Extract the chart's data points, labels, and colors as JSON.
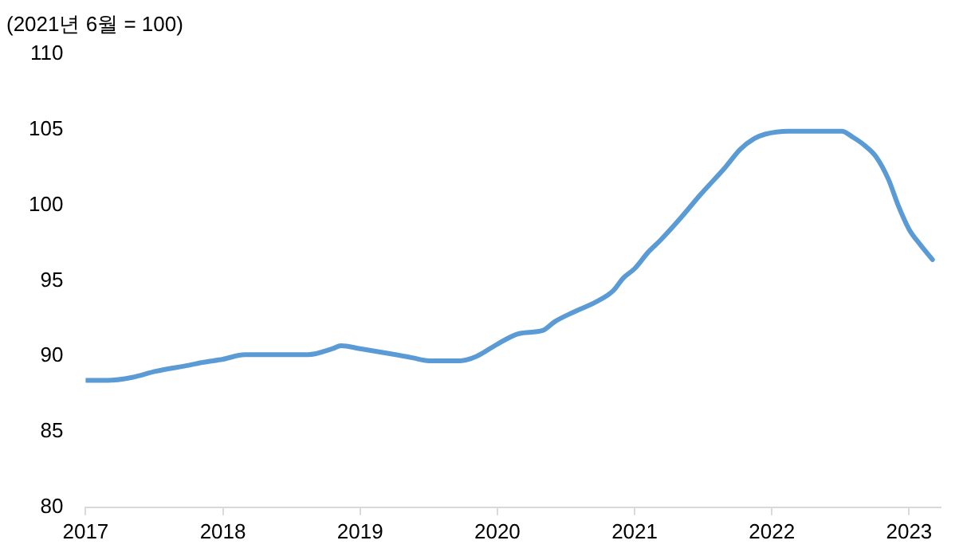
{
  "chart_data": {
    "type": "line",
    "ylabel": "(2021년 6월 = 100)",
    "x": [
      2017.0,
      2017.16,
      2017.34,
      2017.51,
      2017.75,
      2017.86,
      2018.0,
      2018.16,
      2018.62,
      2018.8,
      2018.86,
      2019.0,
      2019.26,
      2019.38,
      2019.5,
      2019.73,
      2019.85,
      2020.0,
      2020.16,
      2020.33,
      2020.42,
      2020.55,
      2020.72,
      2020.84,
      2020.92,
      2021.0,
      2021.1,
      2021.19,
      2021.34,
      2021.48,
      2021.66,
      2021.77,
      2021.87,
      2021.95,
      2022.12,
      2022.51,
      2022.59,
      2022.67,
      2022.76,
      2022.85,
      2022.92,
      2023.0,
      2023.08,
      2023.17
    ],
    "series": [
      {
        "color": "#5b9bd5",
        "values": [
          88.4,
          88.4,
          88.6,
          89.0,
          89.4,
          89.6,
          89.8,
          90.1,
          90.1,
          90.5,
          90.7,
          90.5,
          90.1,
          89.9,
          89.7,
          89.7,
          90.0,
          90.8,
          91.5,
          91.7,
          92.3,
          92.9,
          93.6,
          94.3,
          95.2,
          95.8,
          96.9,
          97.7,
          99.2,
          100.7,
          102.5,
          103.7,
          104.4,
          104.7,
          104.9,
          104.9,
          104.5,
          104.0,
          103.2,
          101.7,
          100.0,
          98.4,
          97.4,
          96.4
        ]
      }
    ],
    "xlim": [
      2017,
      2023.23
    ],
    "xticks": [
      2017,
      2018,
      2019,
      2020,
      2021,
      2022,
      2023
    ],
    "ylim": [
      80,
      110
    ],
    "yticks": [
      80,
      85,
      90,
      95,
      100,
      105,
      110
    ],
    "grid": false,
    "legend": false,
    "marker": "none",
    "line_style": "solid"
  }
}
